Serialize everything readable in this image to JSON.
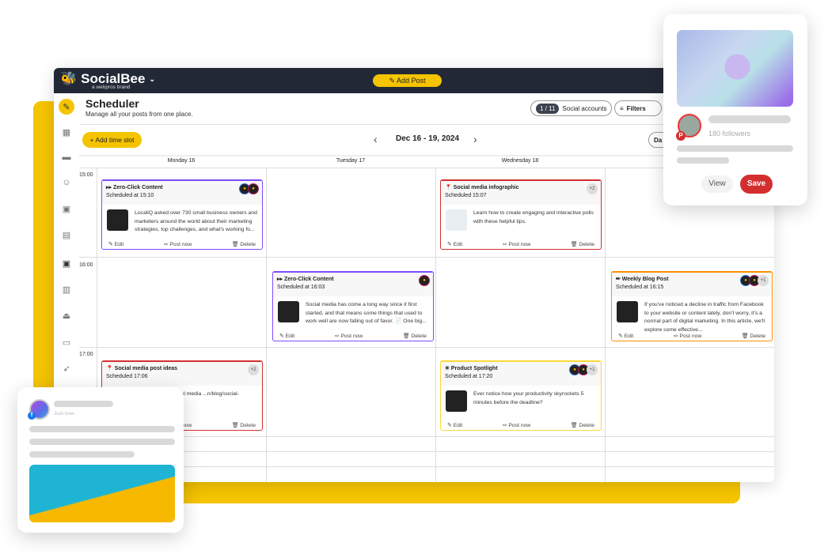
{
  "app": {
    "brand": "SocialBee",
    "brand_sub": "a webpros brand",
    "add_post": "Add Post"
  },
  "sidebar": {
    "icons": [
      "edit-icon",
      "dashboard-icon",
      "folder-icon",
      "owl-icon",
      "calendar-edit-icon",
      "calendar-icon",
      "calendar-day-icon",
      "chart-icon",
      "bucket-icon",
      "chat-icon",
      "rocket-icon"
    ]
  },
  "header": {
    "title": "Scheduler",
    "subtitle": "Manage all your posts from one place.",
    "accounts_count": "1 / 11",
    "accounts_label": "Social accounts",
    "filters": "Filters",
    "view_mode": "Da"
  },
  "toolbar": {
    "add_time_slot": "Add time slot",
    "date_range": "Dec 16 - 19, 2024",
    "prev": "‹",
    "next": "›"
  },
  "days": [
    "Monday 16",
    "Tuesday 17",
    "Wednesday 18"
  ],
  "times": [
    "15:00",
    "16:00",
    "17:00"
  ],
  "actions": {
    "edit": "Edit",
    "post_now": "Post now",
    "delete": "Delete"
  },
  "posts": [
    {
      "category": "▸▸ Zero-Click Content",
      "scheduled": "Scheduled at 15:10",
      "text": "LocaliQ asked over 730 small business owners and marketers around the world about their marketing strategies, top challenges, and what's working fo...",
      "color": "#7c4dff",
      "extra": ""
    },
    {
      "category": "📍 Social media infographic",
      "scheduled": "Scheduled 15:07",
      "text": "Learn how to create engaging and interactive polls with these helpful tips.",
      "color": "#d32f2f",
      "extra": "+2"
    },
    {
      "category": "▸▸ Zero-Click Content",
      "scheduled": "Scheduled at 16:03",
      "text": "Social media has come a long way since it first started, and that means some things that used to work well are now falling out of favor. 📄 One big...",
      "color": "#7c4dff",
      "extra": ""
    },
    {
      "category": "✏ Weekly Blog Post",
      "scheduled": "Scheduled at 16:15",
      "text": "If you've noticed a decline in traffic from Facebook to your website or content lately, don't worry, it's a normal part of digital marketing. In this article, we'll explore some effective...",
      "color": "#ff8f00",
      "extra": "+1"
    },
    {
      "category": "📍 Social media post ideas",
      "scheduled": "Scheduled 17:06",
      "text": "...lete guide on social media ...n/blog/social-media-...",
      "color": "#d32f2f",
      "extra": "+2"
    },
    {
      "category": "✳ Product Spotlight",
      "scheduled": "Scheduled at 17:20",
      "text": "Ever notice how your productivity skyrockets 5 minutes before the deadline?",
      "color": "#fdd835",
      "extra": "+1"
    }
  ],
  "pinterest_card": {
    "followers": "180 followers",
    "view": "View",
    "save": "Save",
    "save_color": "#d32f2f"
  },
  "facebook_card": {
    "time": "Just now"
  },
  "colors": {
    "accent": "#f5c400",
    "header": "#232836"
  }
}
